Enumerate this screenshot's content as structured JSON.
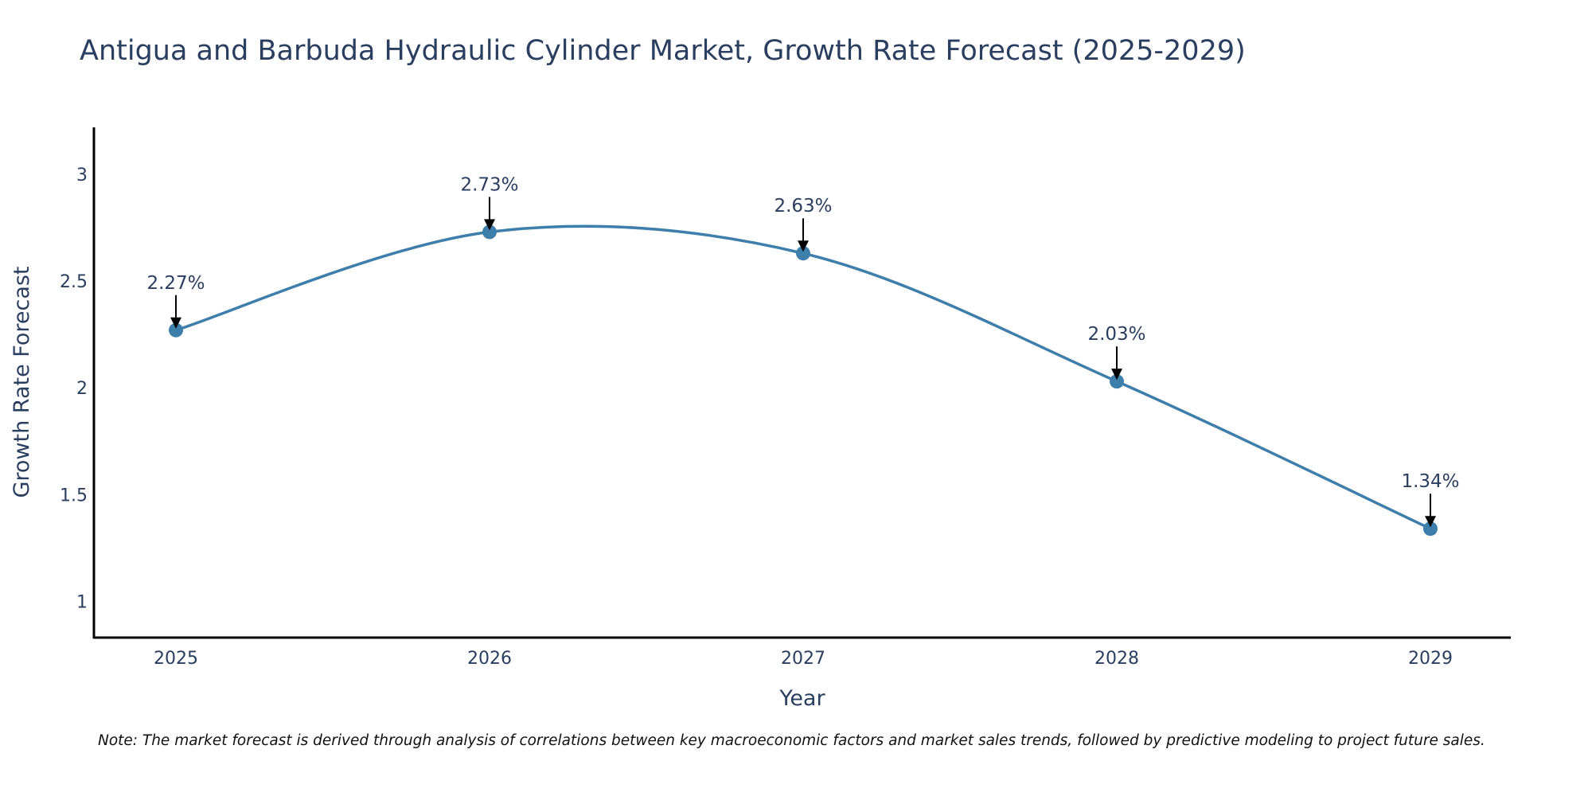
{
  "chart_data": {
    "type": "line",
    "title": "Antigua and Barbuda Hydraulic Cylinder Market, Growth Rate Forecast (2025-2029)",
    "xlabel": "Year",
    "ylabel": "Growth Rate Forecast",
    "categories": [
      "2025",
      "2026",
      "2027",
      "2028",
      "2029"
    ],
    "values": [
      2.27,
      2.73,
      2.63,
      2.03,
      1.34
    ],
    "data_labels": [
      "2.27%",
      "2.73%",
      "2.63%",
      "2.03%",
      "1.34%"
    ],
    "y_ticks": [
      1,
      1.5,
      2,
      2.5,
      3
    ],
    "y_tick_labels": [
      "1",
      "1.5",
      "2",
      "2.5",
      "3"
    ],
    "ylim": [
      0.83,
      3.22
    ],
    "grid": false,
    "line_shape": "spline",
    "colors": {
      "line": "#3d7eab",
      "marker": "#3d7eab",
      "arrow": "#000000",
      "text": "#2a3f5f",
      "axis": "#000000"
    },
    "note": "Note: The market forecast is derived through analysis of correlations between key macroeconomic factors and market sales trends, followed by predictive modeling to project future sales."
  }
}
